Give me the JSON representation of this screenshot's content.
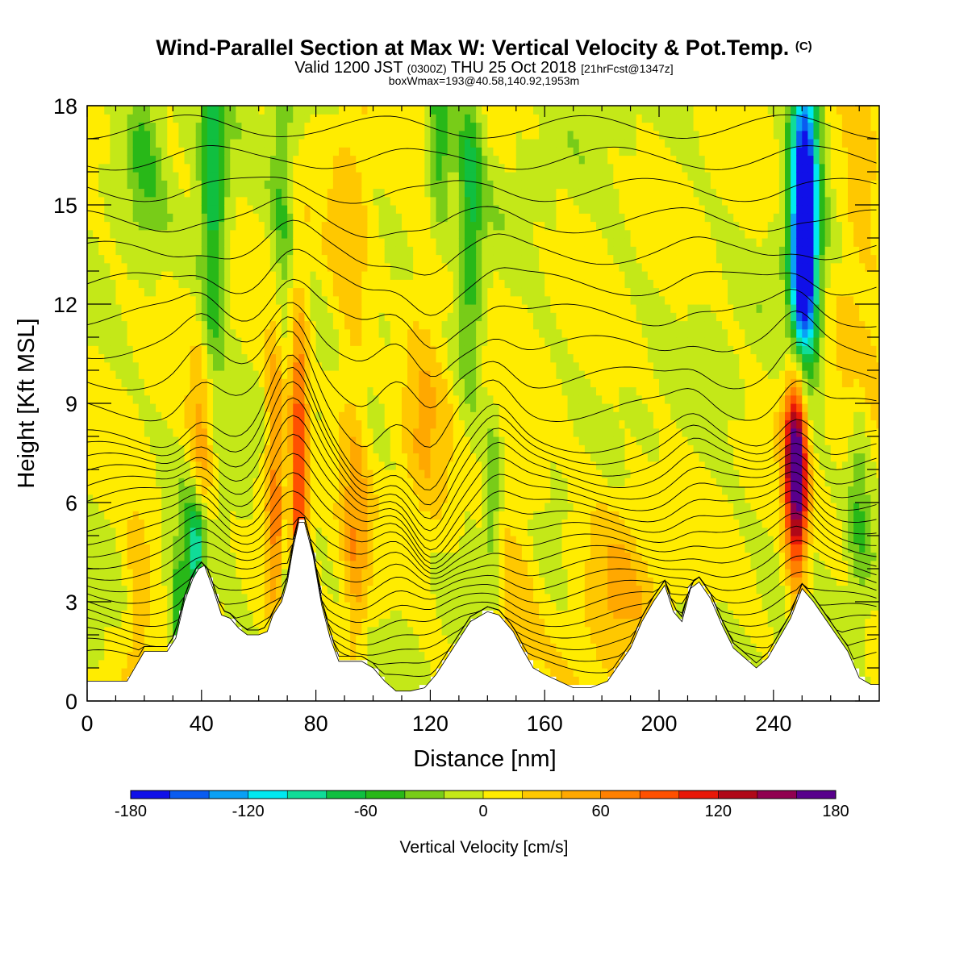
{
  "header": {
    "title": "Wind-Parallel Section at Max W: Vertical Velocity & Pot.Temp.",
    "title_mark": "(C)",
    "valid_a": "Valid 1200 JST",
    "valid_utc": "(0300Z)",
    "valid_b": "THU 25 Oct 2018",
    "forecast": "[21hrFcst@1347z]",
    "box_info": "boxWmax=193@40.58,140.92,1953m"
  },
  "chart_data": {
    "type": "heatmap",
    "xlabel": "Distance [nm]",
    "ylabel": "Height [Kft MSL]",
    "xlim": [
      0,
      277
    ],
    "ylim": [
      0,
      18
    ],
    "xticks": [
      "0",
      "40",
      "80",
      "120",
      "160",
      "200",
      "240"
    ],
    "yticks": [
      "0",
      "3",
      "6",
      "9",
      "12",
      "15",
      "18"
    ],
    "colorbar_label": "Vertical Velocity [cm/s]",
    "colorbar_ticks": [
      "-180",
      "-120",
      "-60",
      "0",
      "60",
      "120",
      "180"
    ],
    "colorbar_range": [
      -180,
      180
    ],
    "colors": [
      "#1010e8",
      "#0a5cf0",
      "#0aa0f5",
      "#00e8f0",
      "#10dc98",
      "#10bf40",
      "#28b818",
      "#78cc18",
      "#c4e818",
      "#ffec00",
      "#ffc800",
      "#ffa800",
      "#ff8000",
      "#ff5000",
      "#e81808",
      "#b00818",
      "#900050",
      "#58008c"
    ],
    "terrain_kft": [
      [
        0,
        0.6
      ],
      [
        8,
        0.6
      ],
      [
        14,
        0.6
      ],
      [
        16,
        0.9
      ],
      [
        20,
        1.5
      ],
      [
        24,
        1.5
      ],
      [
        28,
        1.5
      ],
      [
        31,
        1.9
      ],
      [
        34,
        3.0
      ],
      [
        37,
        3.7
      ],
      [
        39,
        4.0
      ],
      [
        41,
        4.1
      ],
      [
        44,
        3.4
      ],
      [
        47,
        2.6
      ],
      [
        50,
        2.5
      ],
      [
        53,
        2.2
      ],
      [
        56,
        2.0
      ],
      [
        60,
        2.0
      ],
      [
        63,
        2.1
      ],
      [
        65,
        2.6
      ],
      [
        68,
        3.0
      ],
      [
        70,
        3.6
      ],
      [
        72,
        4.6
      ],
      [
        74,
        5.4
      ],
      [
        76,
        5.4
      ],
      [
        79,
        4.4
      ],
      [
        82,
        2.9
      ],
      [
        85,
        1.9
      ],
      [
        88,
        1.2
      ],
      [
        92,
        1.2
      ],
      [
        96,
        1.2
      ],
      [
        100,
        1.0
      ],
      [
        104,
        0.6
      ],
      [
        108,
        0.3
      ],
      [
        113,
        0.3
      ],
      [
        118,
        0.4
      ],
      [
        122,
        0.8
      ],
      [
        128,
        1.6
      ],
      [
        134,
        2.4
      ],
      [
        140,
        2.7
      ],
      [
        144,
        2.6
      ],
      [
        149,
        2.1
      ],
      [
        152,
        1.6
      ],
      [
        156,
        1.0
      ],
      [
        160,
        0.8
      ],
      [
        165,
        0.6
      ],
      [
        170,
        0.4
      ],
      [
        176,
        0.4
      ],
      [
        182,
        0.6
      ],
      [
        186,
        1.1
      ],
      [
        190,
        1.6
      ],
      [
        194,
        2.4
      ],
      [
        198,
        3.0
      ],
      [
        202,
        3.5
      ],
      [
        205,
        2.7
      ],
      [
        208,
        2.4
      ],
      [
        211,
        3.4
      ],
      [
        214,
        3.6
      ],
      [
        218,
        3.1
      ],
      [
        222,
        2.3
      ],
      [
        226,
        1.6
      ],
      [
        230,
        1.3
      ],
      [
        234,
        1.0
      ],
      [
        238,
        1.3
      ],
      [
        242,
        1.9
      ],
      [
        246,
        2.5
      ],
      [
        250,
        3.4
      ],
      [
        254,
        3.0
      ],
      [
        258,
        2.5
      ],
      [
        262,
        2.0
      ],
      [
        266,
        1.5
      ],
      [
        270,
        0.7
      ],
      [
        274,
        0.5
      ],
      [
        277,
        0.5
      ]
    ],
    "updraft_plumes": [
      {
        "x": 40,
        "z": 7.0,
        "sx": 3,
        "sz": 2.5,
        "w": 60
      },
      {
        "x": 66,
        "z": 7.5,
        "sx": 2.5,
        "sz": 3,
        "w": 90
      },
      {
        "x": 74,
        "z": 7.0,
        "sx": 2.5,
        "sz": 3.5,
        "w": 110
      },
      {
        "x": 248,
        "z": 7.2,
        "sx": 2.8,
        "sz": 2.4,
        "w": 193
      },
      {
        "x": 18,
        "z": 3.0,
        "sx": 4,
        "sz": 2.5,
        "w": 40
      },
      {
        "x": 94,
        "z": 4.0,
        "sx": 3,
        "sz": 3,
        "w": 45
      },
      {
        "x": 118,
        "z": 9.5,
        "sx": 6,
        "sz": 4,
        "w": 35
      },
      {
        "x": 150,
        "z": 4.0,
        "sx": 6,
        "sz": 3,
        "w": 30
      },
      {
        "x": 185,
        "z": 3.5,
        "sx": 10,
        "sz": 2.5,
        "w": 35
      },
      {
        "x": 270,
        "z": 13.0,
        "sx": 6,
        "sz": 5,
        "w": 35
      },
      {
        "x": 92,
        "z": 13.0,
        "sx": 5,
        "sz": 5,
        "w": 30
      }
    ],
    "downdraft_plumes": [
      {
        "x": 251,
        "z": 15.5,
        "sx": 3.5,
        "sz": 3.5,
        "w": -180
      },
      {
        "x": 250,
        "z": 12.5,
        "sx": 3,
        "sz": 2,
        "w": -110
      },
      {
        "x": 38,
        "z": 4.6,
        "sx": 2.5,
        "sz": 1.3,
        "w": -115
      },
      {
        "x": 44,
        "z": 15.0,
        "sx": 3,
        "sz": 4,
        "w": -75
      },
      {
        "x": 123,
        "z": 17.0,
        "sx": 3,
        "sz": 2,
        "w": -65
      },
      {
        "x": 134,
        "z": 15.0,
        "sx": 3,
        "sz": 4,
        "w": -60
      },
      {
        "x": 32,
        "z": 2.5,
        "sx": 2,
        "sz": 1.5,
        "w": -65
      },
      {
        "x": 70,
        "z": 3.5,
        "sx": 1.5,
        "sz": 2,
        "w": -55
      },
      {
        "x": 68,
        "z": 14.0,
        "sx": 3,
        "sz": 4,
        "w": -45
      },
      {
        "x": 20,
        "z": 17.0,
        "sx": 4,
        "sz": 2,
        "w": -40
      },
      {
        "x": 142,
        "z": 6.0,
        "sx": 2,
        "sz": 2,
        "w": -40
      },
      {
        "x": 270,
        "z": 6.5,
        "sx": 3,
        "sz": 3,
        "w": -45
      }
    ]
  }
}
